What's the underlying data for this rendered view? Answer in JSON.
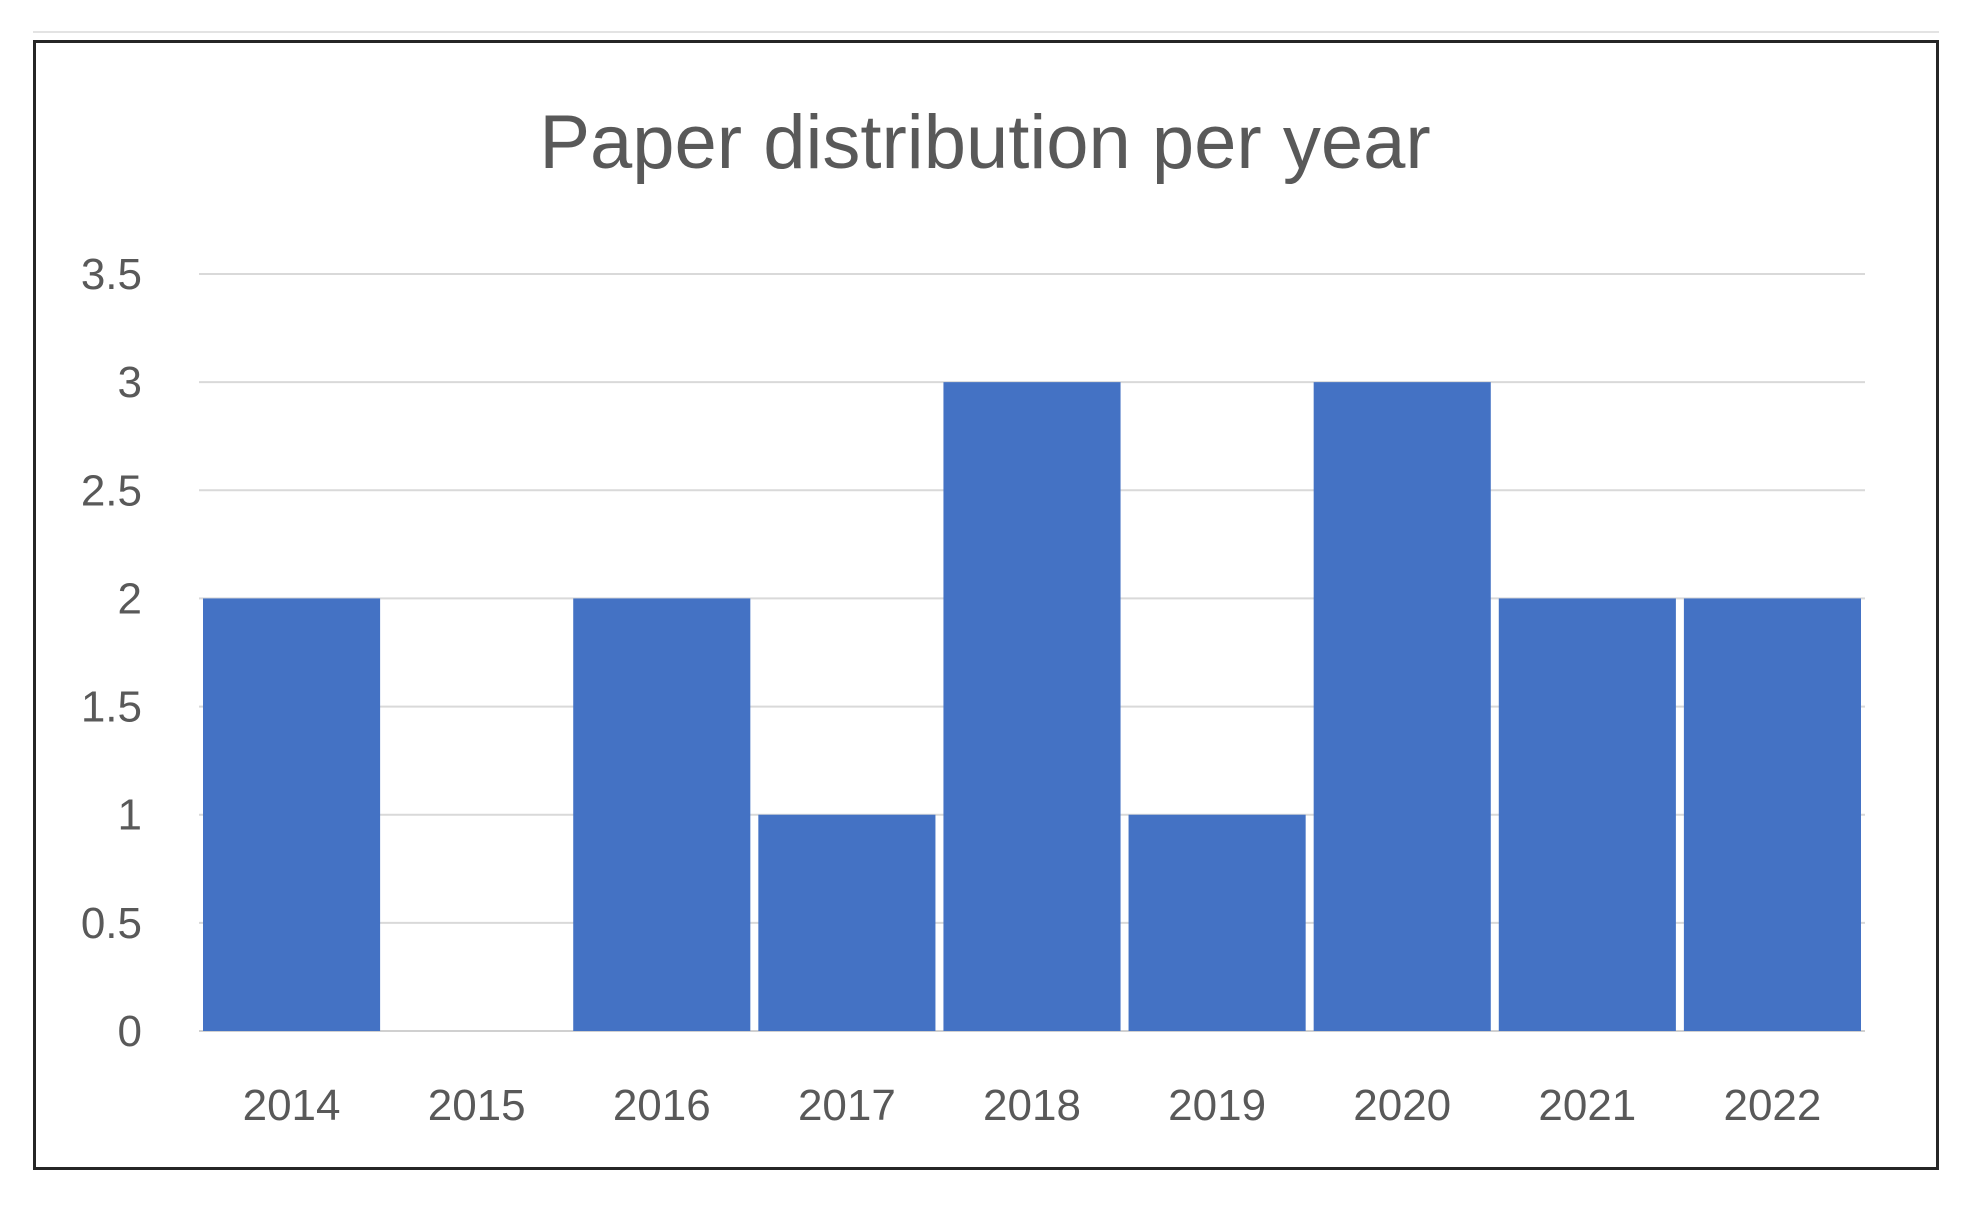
{
  "chart_data": {
    "type": "bar",
    "title": "Paper distribution per year",
    "xlabel": "",
    "ylabel": "",
    "categories": [
      "2014",
      "2015",
      "2016",
      "2017",
      "2018",
      "2019",
      "2020",
      "2021",
      "2022"
    ],
    "values": [
      2,
      0,
      2,
      1,
      3,
      1,
      3,
      2,
      2
    ],
    "ylim": [
      0,
      3.5
    ],
    "yticks": [
      0,
      0.5,
      1,
      1.5,
      2,
      2.5,
      3,
      3.5
    ],
    "ytick_labels": [
      "0",
      "0.5",
      "1",
      "1.5",
      "2",
      "2.5",
      "3",
      "3.5"
    ],
    "grid": true,
    "legend": "none",
    "colors": {
      "bar": "#4472c4",
      "text": "#595959",
      "grid": "#d9d9d9"
    }
  }
}
